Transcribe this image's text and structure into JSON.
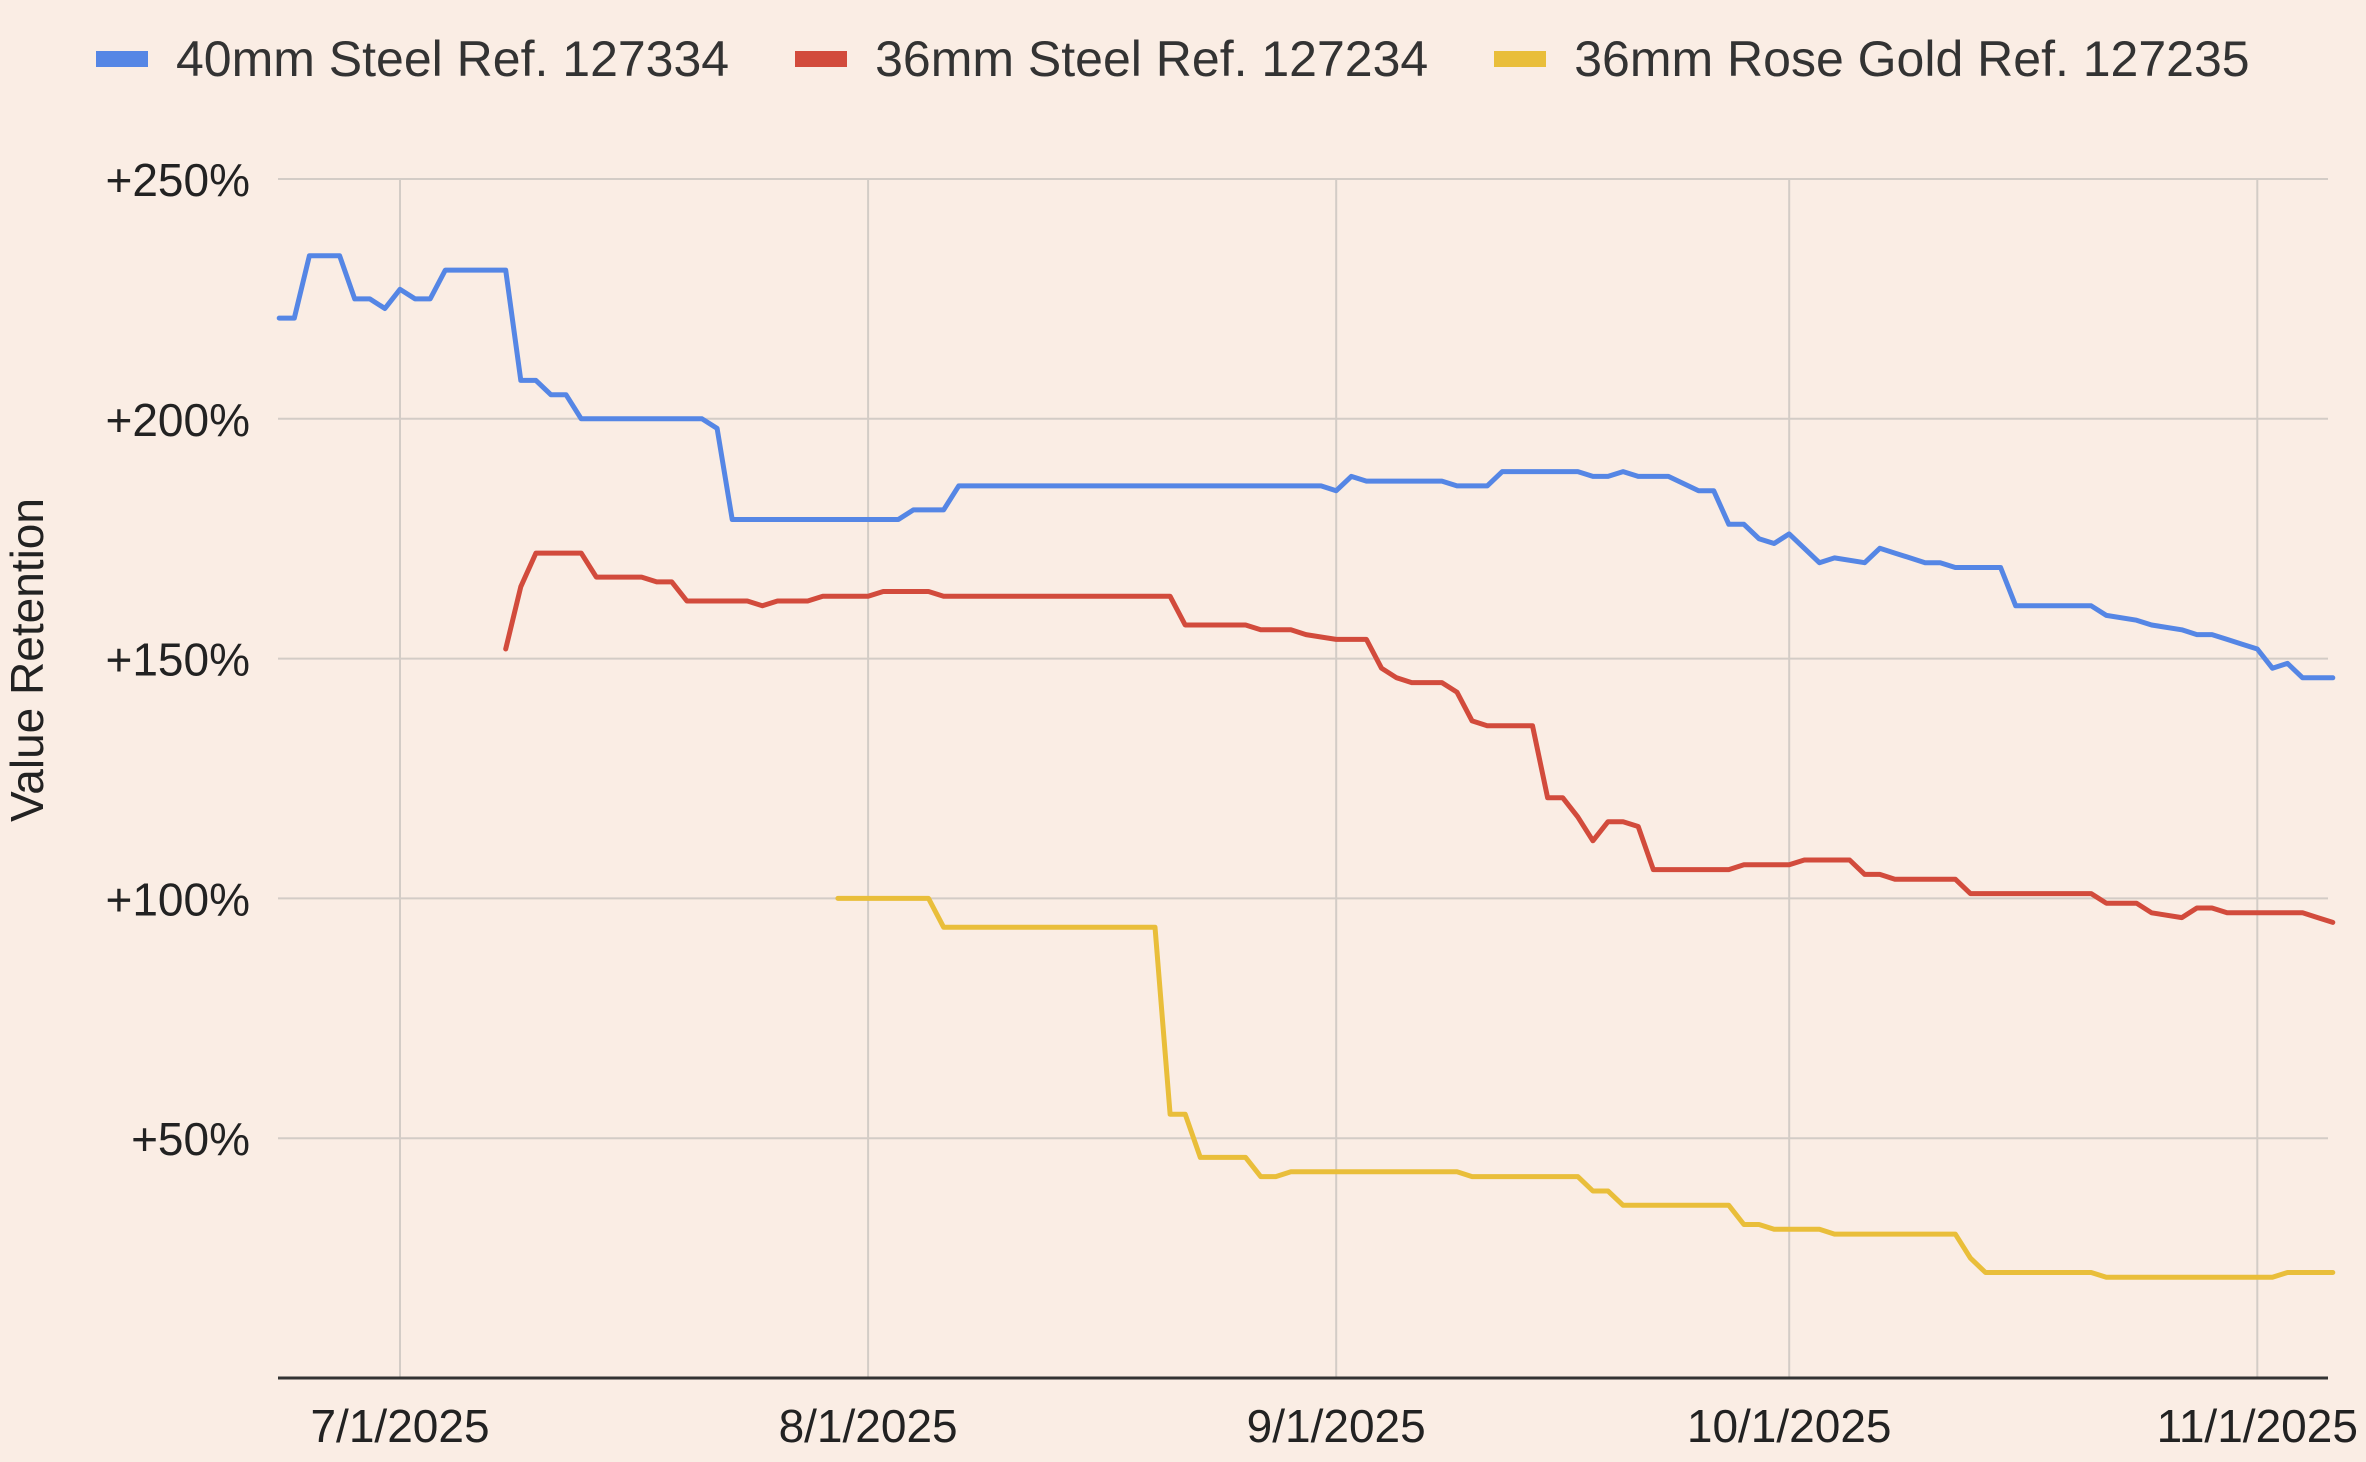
{
  "chart_data": {
    "type": "line",
    "title": "",
    "xlabel": "",
    "ylabel": "Value Retention",
    "x_ticks": [
      "7/1/2025",
      "8/1/2025",
      "9/1/2025",
      "10/1/2025",
      "11/1/2025"
    ],
    "y_ticks": [
      "+50%",
      "+100%",
      "+150%",
      "+200%",
      "+250%"
    ],
    "ylim": [
      0,
      250
    ],
    "grid": true,
    "legend_position": "top",
    "series": [
      {
        "name": "40mm Steel Ref. 127334",
        "color": "#5586E5",
        "points": [
          [
            "2025-06-23",
            221
          ],
          [
            "2025-06-24",
            221
          ],
          [
            "2025-06-25",
            234
          ],
          [
            "2025-06-27",
            234
          ],
          [
            "2025-06-28",
            225
          ],
          [
            "2025-06-29",
            225
          ],
          [
            "2025-06-30",
            223
          ],
          [
            "2025-07-01",
            227
          ],
          [
            "2025-07-02",
            225
          ],
          [
            "2025-07-03",
            225
          ],
          [
            "2025-07-04",
            231
          ],
          [
            "2025-07-07",
            231
          ],
          [
            "2025-07-08",
            231
          ],
          [
            "2025-07-09",
            208
          ],
          [
            "2025-07-10",
            208
          ],
          [
            "2025-07-11",
            205
          ],
          [
            "2025-07-12",
            205
          ],
          [
            "2025-07-13",
            200
          ],
          [
            "2025-07-21",
            200
          ],
          [
            "2025-07-22",
            198
          ],
          [
            "2025-07-23",
            179
          ],
          [
            "2025-08-03",
            179
          ],
          [
            "2025-08-04",
            181
          ],
          [
            "2025-08-06",
            181
          ],
          [
            "2025-08-07",
            186
          ],
          [
            "2025-08-31",
            186
          ],
          [
            "2025-09-01",
            185
          ],
          [
            "2025-09-02",
            188
          ],
          [
            "2025-09-03",
            187
          ],
          [
            "2025-09-08",
            187
          ],
          [
            "2025-09-09",
            186
          ],
          [
            "2025-09-11",
            186
          ],
          [
            "2025-09-12",
            189
          ],
          [
            "2025-09-17",
            189
          ],
          [
            "2025-09-18",
            188
          ],
          [
            "2025-09-19",
            188
          ],
          [
            "2025-09-20",
            189
          ],
          [
            "2025-09-21",
            188
          ],
          [
            "2025-09-23",
            188
          ],
          [
            "2025-09-25",
            185
          ],
          [
            "2025-09-26",
            185
          ],
          [
            "2025-09-27",
            178
          ],
          [
            "2025-09-28",
            178
          ],
          [
            "2025-09-29",
            175
          ],
          [
            "2025-09-30",
            174
          ],
          [
            "2025-10-01",
            176
          ],
          [
            "2025-10-02",
            173
          ],
          [
            "2025-10-03",
            170
          ],
          [
            "2025-10-04",
            171
          ],
          [
            "2025-10-06",
            170
          ],
          [
            "2025-10-07",
            173
          ],
          [
            "2025-10-08",
            172
          ],
          [
            "2025-10-10",
            170
          ],
          [
            "2025-10-11",
            170
          ],
          [
            "2025-10-12",
            169
          ],
          [
            "2025-10-15",
            169
          ],
          [
            "2025-10-16",
            161
          ],
          [
            "2025-10-21",
            161
          ],
          [
            "2025-10-22",
            159
          ],
          [
            "2025-10-24",
            158
          ],
          [
            "2025-10-25",
            157
          ],
          [
            "2025-10-27",
            156
          ],
          [
            "2025-10-28",
            155
          ],
          [
            "2025-10-29",
            155
          ],
          [
            "2025-10-30",
            154
          ],
          [
            "2025-10-31",
            153
          ],
          [
            "2025-11-01",
            152
          ],
          [
            "2025-11-02",
            148
          ],
          [
            "2025-11-03",
            149
          ],
          [
            "2025-11-04",
            146
          ],
          [
            "2025-11-05",
            146
          ],
          [
            "2025-11-06",
            146
          ]
        ]
      },
      {
        "name": "36mm Steel Ref. 127234",
        "color": "#D24B3C",
        "points": [
          [
            "2025-07-08",
            152
          ],
          [
            "2025-07-09",
            165
          ],
          [
            "2025-07-10",
            172
          ],
          [
            "2025-07-13",
            172
          ],
          [
            "2025-07-14",
            167
          ],
          [
            "2025-07-17",
            167
          ],
          [
            "2025-07-18",
            166
          ],
          [
            "2025-07-19",
            166
          ],
          [
            "2025-07-20",
            162
          ],
          [
            "2025-07-24",
            162
          ],
          [
            "2025-07-25",
            161
          ],
          [
            "2025-07-26",
            162
          ],
          [
            "2025-07-28",
            162
          ],
          [
            "2025-07-29",
            163
          ],
          [
            "2025-08-01",
            163
          ],
          [
            "2025-08-02",
            164
          ],
          [
            "2025-08-05",
            164
          ],
          [
            "2025-08-06",
            163
          ],
          [
            "2025-08-21",
            163
          ],
          [
            "2025-08-22",
            157
          ],
          [
            "2025-08-26",
            157
          ],
          [
            "2025-08-27",
            156
          ],
          [
            "2025-08-29",
            156
          ],
          [
            "2025-08-30",
            155
          ],
          [
            "2025-09-01",
            154
          ],
          [
            "2025-09-03",
            154
          ],
          [
            "2025-09-04",
            148
          ],
          [
            "2025-09-05",
            146
          ],
          [
            "2025-09-06",
            145
          ],
          [
            "2025-09-08",
            145
          ],
          [
            "2025-09-09",
            143
          ],
          [
            "2025-09-10",
            137
          ],
          [
            "2025-09-11",
            136
          ],
          [
            "2025-09-14",
            136
          ],
          [
            "2025-09-15",
            121
          ],
          [
            "2025-09-16",
            121
          ],
          [
            "2025-09-17",
            117
          ],
          [
            "2025-09-18",
            112
          ],
          [
            "2025-09-19",
            116
          ],
          [
            "2025-09-20",
            116
          ],
          [
            "2025-09-21",
            115
          ],
          [
            "2025-09-22",
            106
          ],
          [
            "2025-09-27",
            106
          ],
          [
            "2025-09-28",
            107
          ],
          [
            "2025-10-01",
            107
          ],
          [
            "2025-10-02",
            108
          ],
          [
            "2025-10-05",
            108
          ],
          [
            "2025-10-06",
            105
          ],
          [
            "2025-10-07",
            105
          ],
          [
            "2025-10-08",
            104
          ],
          [
            "2025-10-12",
            104
          ],
          [
            "2025-10-13",
            101
          ],
          [
            "2025-10-21",
            101
          ],
          [
            "2025-10-22",
            99
          ],
          [
            "2025-10-24",
            99
          ],
          [
            "2025-10-25",
            97
          ],
          [
            "2025-10-27",
            96
          ],
          [
            "2025-10-28",
            98
          ],
          [
            "2025-10-29",
            98
          ],
          [
            "2025-10-30",
            97
          ],
          [
            "2025-11-04",
            97
          ],
          [
            "2025-11-05",
            96
          ],
          [
            "2025-11-06",
            95
          ]
        ]
      },
      {
        "name": "36mm Rose Gold Ref. 127235",
        "color": "#E9BE3A",
        "points": [
          [
            "2025-07-30",
            100
          ],
          [
            "2025-08-05",
            100
          ],
          [
            "2025-08-06",
            94
          ],
          [
            "2025-08-20",
            94
          ],
          [
            "2025-08-21",
            55
          ],
          [
            "2025-08-22",
            55
          ],
          [
            "2025-08-23",
            46
          ],
          [
            "2025-08-26",
            46
          ],
          [
            "2025-08-27",
            42
          ],
          [
            "2025-08-28",
            42
          ],
          [
            "2025-08-29",
            43
          ],
          [
            "2025-09-09",
            43
          ],
          [
            "2025-09-10",
            42
          ],
          [
            "2025-09-17",
            42
          ],
          [
            "2025-09-18",
            39
          ],
          [
            "2025-09-19",
            39
          ],
          [
            "2025-09-20",
            36
          ],
          [
            "2025-09-27",
            36
          ],
          [
            "2025-09-28",
            32
          ],
          [
            "2025-09-29",
            32
          ],
          [
            "2025-09-30",
            31
          ],
          [
            "2025-10-03",
            31
          ],
          [
            "2025-10-04",
            30
          ],
          [
            "2025-10-12",
            30
          ],
          [
            "2025-10-13",
            25
          ],
          [
            "2025-10-14",
            22
          ],
          [
            "2025-10-21",
            22
          ],
          [
            "2025-10-22",
            21
          ],
          [
            "2025-11-01",
            21
          ],
          [
            "2025-11-02",
            21
          ],
          [
            "2025-11-03",
            22
          ],
          [
            "2025-11-06",
            22
          ]
        ]
      }
    ]
  }
}
